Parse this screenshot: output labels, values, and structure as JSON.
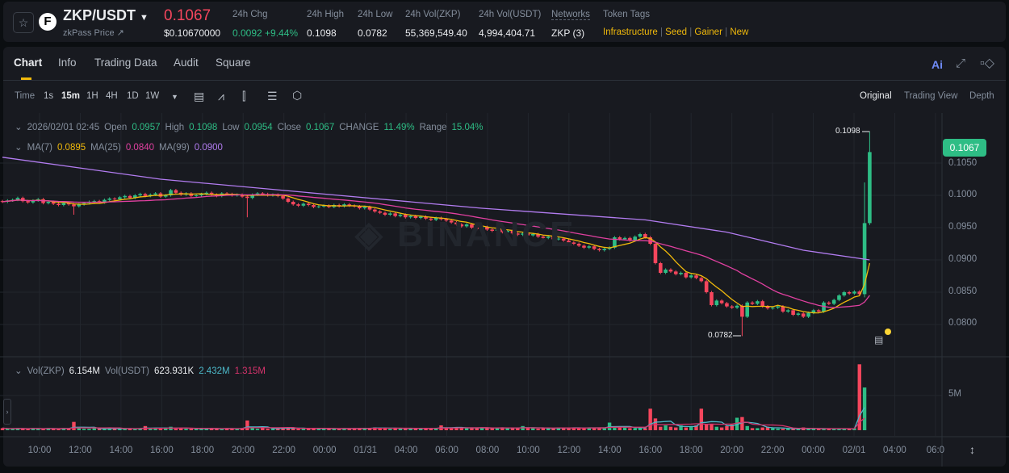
{
  "header": {
    "symbol": "ZKP/USDT",
    "subtitle": "zkPass Price ↗",
    "price": "0.1067",
    "price_usd": "$0.10670000",
    "stats": [
      {
        "label": "24h Chg",
        "value": "0.0092 +9.44%"
      },
      {
        "label": "24h High",
        "value": "0.1098"
      },
      {
        "label": "24h Low",
        "value": "0.0782"
      },
      {
        "label": "24h Vol(ZKP)",
        "value": "55,369,549.40"
      },
      {
        "label": "24h Vol(USDT)",
        "value": "4,994,404.71"
      },
      {
        "label": "Networks",
        "value": "ZKP (3)"
      }
    ],
    "token_tags_label": "Token Tags",
    "token_tags": [
      "Infrastructure",
      "Seed",
      "Gainer",
      "New"
    ]
  },
  "tabs": [
    "Chart",
    "Info",
    "Trading Data",
    "Audit",
    "Square"
  ],
  "active_tab": "Chart",
  "ai_label": "Ai",
  "toolbar": {
    "intervals": [
      "Time",
      "1s",
      "15m",
      "1H",
      "4H",
      "1D",
      "1W"
    ],
    "active": "15m",
    "views": [
      "Original",
      "Trading View",
      "Depth"
    ],
    "active_view": "Original"
  },
  "legend": {
    "date": "2026/02/01 02:45",
    "open_l": "Open",
    "open": "0.0957",
    "high_l": "High",
    "high": "0.1098",
    "low_l": "Low",
    "low": "0.0954",
    "close_l": "Close",
    "close": "0.1067",
    "change_l": "CHANGE",
    "change": "11.49%",
    "range_l": "Range",
    "range": "15.04%",
    "ma7_l": "MA(7)",
    "ma7": "0.0895",
    "ma25_l": "MA(25)",
    "ma25": "0.0840",
    "ma99_l": "MA(99)",
    "ma99": "0.0900",
    "vol_l": "Vol(ZKP)",
    "vol": "6.154M",
    "volu_l": "Vol(USDT)",
    "volu": "623.931K",
    "vma1": "2.432M",
    "vma2": "1.315M"
  },
  "watermark": "BINANCE",
  "colors": {
    "up": "#2ebd85",
    "down": "#f6465d",
    "ma7": "#f0b90b",
    "ma25": "#e040a0",
    "ma99": "#b27cf0",
    "vma1": "#4cb8c8",
    "vma2": "#d6336c",
    "accent": "#f0b90b"
  },
  "chart_data": {
    "type": "candlestick",
    "price_ticks": [
      "0.1050",
      "0.1000",
      "0.0950",
      "0.0900",
      "0.0850",
      "0.0800"
    ],
    "volume_ticks": [
      "5M"
    ],
    "time_ticks": [
      "10:00",
      "12:00",
      "14:00",
      "16:00",
      "18:00",
      "20:00",
      "22:00",
      "00:00",
      "01/31",
      "04:00",
      "06:00",
      "08:00",
      "10:00",
      "12:00",
      "14:00",
      "16:00",
      "18:00",
      "20:00",
      "22:00",
      "00:00",
      "02/01",
      "04:00",
      "06:0"
    ],
    "current_price": "0.1067",
    "high_marker": "0.1098",
    "low_marker": "0.0782",
    "first_open": 0.0991,
    "closes": [
      0.099,
      0.0992,
      0.0993,
      0.0996,
      0.0991,
      0.0989,
      0.0992,
      0.0994,
      0.0988,
      0.099,
      0.0987,
      0.0985,
      0.0988,
      0.0986,
      0.0983,
      0.0986,
      0.0988,
      0.099,
      0.0991,
      0.0989,
      0.0993,
      0.0995,
      0.0994,
      0.0997,
      0.0999,
      0.0996,
      0.1,
      0.1002,
      0.0999,
      0.1001,
      0.1003,
      0.0998,
      0.1,
      0.1008,
      0.1004,
      0.1001,
      0.1003,
      0.0999,
      0.1,
      0.1002,
      0.1004,
      0.1001,
      0.0999,
      0.1003,
      0.1002,
      0.1,
      0.1001,
      0.0998,
      0.0996,
      0.1001,
      0.1003,
      0.1002,
      0.1,
      0.1001,
      0.0999,
      0.0995,
      0.099,
      0.0986,
      0.0984,
      0.0987,
      0.0985,
      0.0982,
      0.0983,
      0.0984,
      0.0982,
      0.0985,
      0.0983,
      0.0986,
      0.0984,
      0.0983,
      0.098,
      0.0982,
      0.0978,
      0.0975,
      0.0973,
      0.097,
      0.0972,
      0.0968,
      0.097,
      0.0966,
      0.0968,
      0.0965,
      0.0967,
      0.0964,
      0.0962,
      0.0965,
      0.0963,
      0.0961,
      0.0958,
      0.0955,
      0.0952,
      0.0955,
      0.095,
      0.0948,
      0.0951,
      0.0947,
      0.0945,
      0.0947,
      0.0943,
      0.0945,
      0.0941,
      0.0939,
      0.0941,
      0.0938,
      0.094,
      0.0936,
      0.0934,
      0.0936,
      0.0932,
      0.0933,
      0.093,
      0.0927,
      0.0925,
      0.0922,
      0.0919,
      0.0921,
      0.0917,
      0.0915,
      0.0917,
      0.0919,
      0.0935,
      0.0932,
      0.0934,
      0.093,
      0.0936,
      0.094,
      0.0935,
      0.0925,
      0.0895,
      0.088,
      0.0885,
      0.0882,
      0.0878,
      0.088,
      0.0873,
      0.0876,
      0.0872,
      0.0867,
      0.085,
      0.083,
      0.0837,
      0.0833,
      0.0828,
      0.0826,
      0.0829,
      0.0812,
      0.0834,
      0.0832,
      0.0836,
      0.0828,
      0.0825,
      0.0826,
      0.0828,
      0.082,
      0.0822,
      0.0815,
      0.0817,
      0.0812,
      0.0818,
      0.0822,
      0.082,
      0.0834,
      0.0832,
      0.0838,
      0.0845,
      0.085,
      0.0848,
      0.0851,
      0.0847,
      0.0957,
      0.1067
    ],
    "wick_extremes": [
      {
        "i": 14,
        "low": 0.097
      },
      {
        "i": 48,
        "low": 0.0966
      },
      {
        "i": 145,
        "low": 0.0782
      },
      {
        "i": 169,
        "high": 0.102,
        "low": 0.0842
      },
      {
        "i": 170,
        "high": 0.1098,
        "low": 0.0954
      }
    ],
    "ma99": [
      [
        0,
        0.1059
      ],
      [
        31,
        0.1025
      ],
      [
        63,
        0.1002
      ],
      [
        94,
        0.098
      ],
      [
        126,
        0.0962
      ],
      [
        142,
        0.0943
      ],
      [
        157,
        0.0915
      ],
      [
        170,
        0.09
      ]
    ],
    "volumes": [
      0.3,
      0.2,
      0.2,
      0.3,
      0.2,
      0.2,
      0.3,
      0.2,
      0.2,
      0.3,
      0.2,
      0.2,
      0.3,
      0.2,
      1.2,
      0.3,
      0.2,
      0.2,
      0.3,
      0.2,
      0.2,
      0.3,
      0.2,
      0.2,
      0.3,
      0.2,
      0.2,
      0.3,
      0.6,
      0.2,
      0.3,
      0.2,
      0.3,
      0.5,
      0.2,
      0.3,
      0.2,
      0.2,
      0.3,
      0.2,
      0.2,
      0.3,
      0.2,
      0.2,
      0.3,
      0.2,
      0.2,
      0.3,
      1.4,
      0.3,
      0.2,
      0.3,
      0.2,
      0.2,
      0.3,
      0.4,
      0.3,
      0.3,
      0.2,
      0.3,
      0.2,
      0.3,
      0.2,
      0.2,
      0.3,
      0.2,
      0.2,
      0.3,
      0.2,
      0.3,
      0.3,
      0.3,
      0.3,
      0.4,
      0.3,
      0.3,
      0.2,
      0.3,
      0.3,
      0.2,
      0.3,
      0.2,
      0.3,
      0.3,
      0.2,
      0.3,
      0.7,
      0.3,
      0.3,
      0.4,
      0.3,
      0.4,
      0.3,
      0.3,
      0.4,
      0.3,
      0.3,
      0.3,
      0.4,
      0.3,
      0.3,
      0.3,
      0.6,
      0.3,
      0.3,
      0.2,
      0.3,
      0.3,
      0.3,
      0.4,
      0.3,
      0.3,
      0.4,
      0.3,
      0.3,
      0.4,
      0.3,
      0.4,
      0.3,
      1.1,
      0.5,
      0.4,
      0.4,
      0.3,
      0.3,
      0.4,
      0.3,
      3.1,
      1.7,
      0.5,
      0.7,
      0.5,
      0.4,
      0.7,
      0.4,
      0.6,
      0.7,
      3.1,
      0.9,
      0.9,
      0.5,
      0.4,
      0.6,
      0.8,
      1.8,
      1.9,
      0.6,
      0.3,
      0.3,
      0.4,
      0.5,
      0.3,
      0.2,
      0.2,
      0.2,
      0.2,
      0.2,
      0.4,
      0.2,
      0.2,
      0.2,
      0.2,
      0.3,
      0.2,
      0.2,
      0.2,
      0.2,
      0.3,
      9.5,
      6.154
    ]
  }
}
